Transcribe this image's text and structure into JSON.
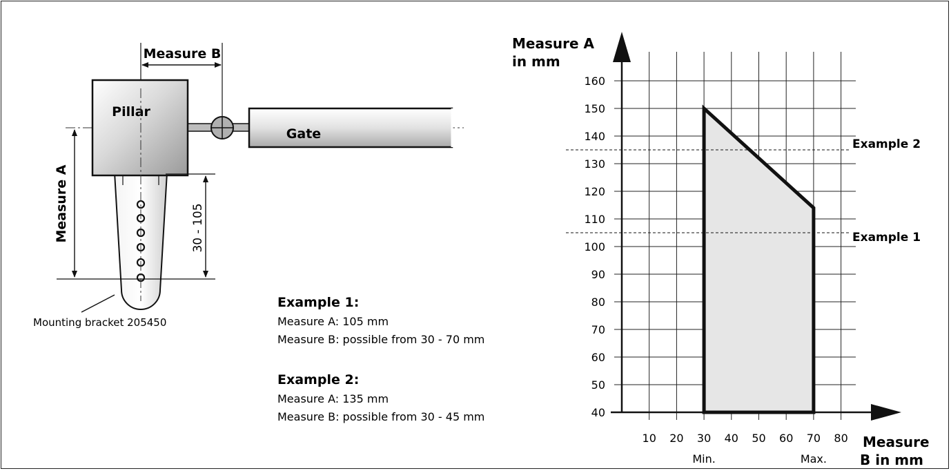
{
  "diagram": {
    "measure_b_label": "Measure B",
    "measure_a_label": "Measure A",
    "pillar_label": "Pillar",
    "gate_label": "Gate",
    "range_label": "30 - 105",
    "bracket_label": "Mounting bracket 205450"
  },
  "examples": [
    {
      "title": "Example 1:",
      "line1": "Measure A: 105 mm",
      "line2": "Measure B: possible from 30 - 70 mm"
    },
    {
      "title": "Example 2:",
      "line1": "Measure A: 135 mm",
      "line2": "Measure B: possible from 30 - 45 mm"
    }
  ],
  "chart_data": {
    "type": "area",
    "ylabel_line1": "Measure A",
    "ylabel_line2": "in mm",
    "xlabel_line1": "Measure",
    "xlabel_line2": "B in mm",
    "y_ticks": [
      40,
      50,
      60,
      70,
      80,
      90,
      100,
      110,
      120,
      130,
      140,
      150,
      160
    ],
    "x_ticks": [
      10,
      20,
      30,
      40,
      50,
      60,
      70,
      80
    ],
    "xlim": [
      0,
      85
    ],
    "ylim": [
      40,
      170
    ],
    "grid": true,
    "region": [
      [
        30,
        40
      ],
      [
        30,
        150
      ],
      [
        70,
        114
      ],
      [
        70,
        40
      ]
    ],
    "min_label": "Min.",
    "max_label": "Max.",
    "min_x": 30,
    "max_x": 70,
    "examples": [
      {
        "label": "Example 1",
        "y": 105
      },
      {
        "label": "Example 2",
        "y": 135
      }
    ],
    "fill_color": "#e6e6e6"
  }
}
